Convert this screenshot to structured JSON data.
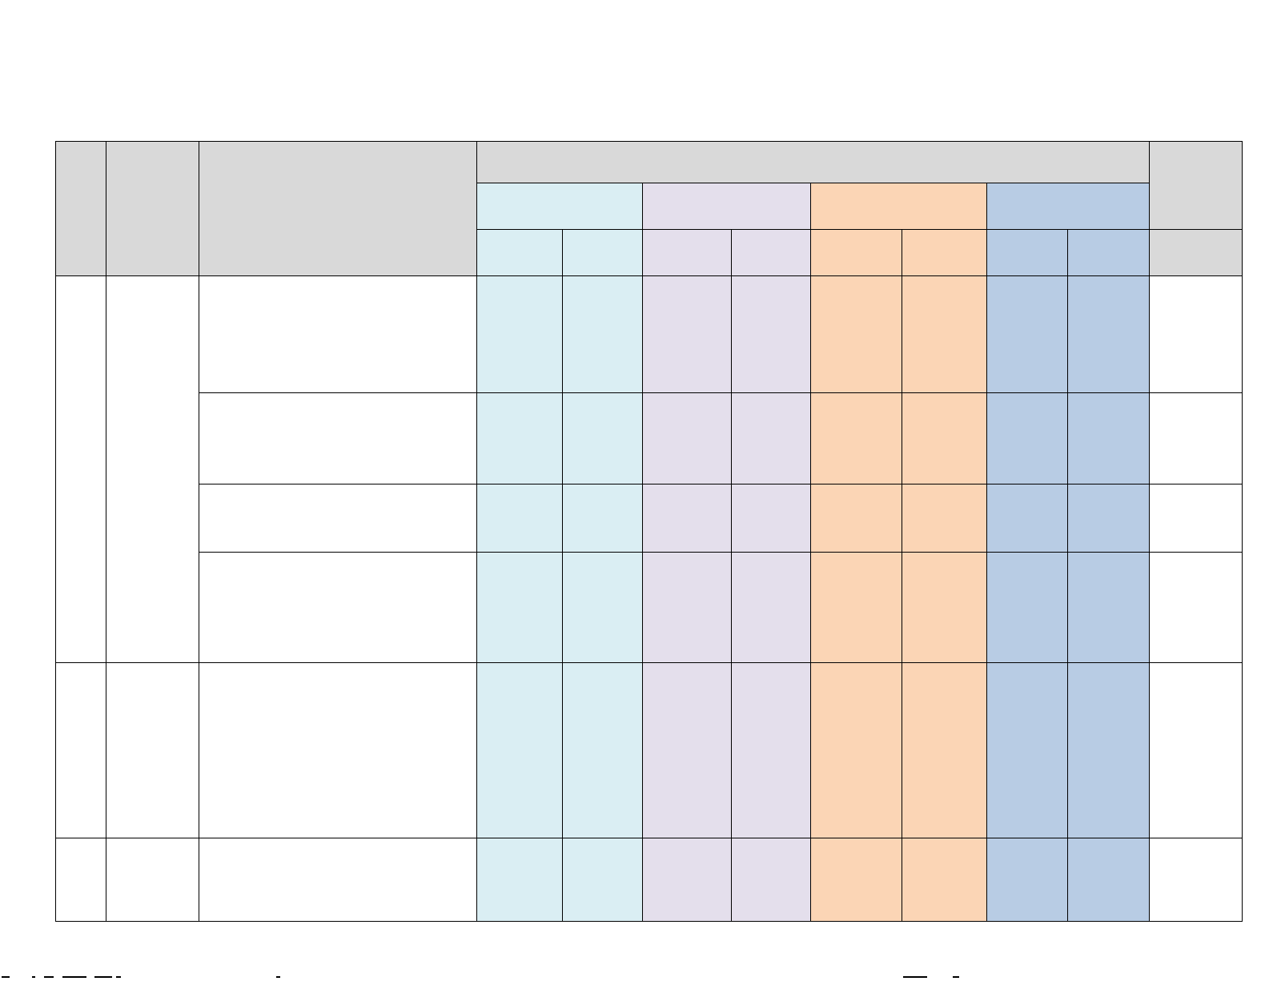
{
  "table": {
    "headers": {
      "col_no": "",
      "col_category": "",
      "col_description": "",
      "group_header": "",
      "subgroups": [
        "",
        "",
        "",
        ""
      ],
      "subcols": [
        "",
        "",
        "",
        "",
        "",
        "",
        "",
        ""
      ],
      "col_last_top": "",
      "col_last_sub": ""
    },
    "rows": [
      {
        "no": "",
        "category": "",
        "items": [
          "",
          "",
          "",
          ""
        ]
      },
      {
        "no": "",
        "category": "",
        "items": [
          ""
        ]
      },
      {
        "no": "",
        "category": "",
        "items": [
          ""
        ]
      }
    ]
  },
  "colors": {
    "header_gray": "#d9d9d9",
    "group_1": "#daeef3",
    "group_2": "#e4dfec",
    "group_3": "#fbd5b5",
    "group_4": "#b8cce4"
  }
}
